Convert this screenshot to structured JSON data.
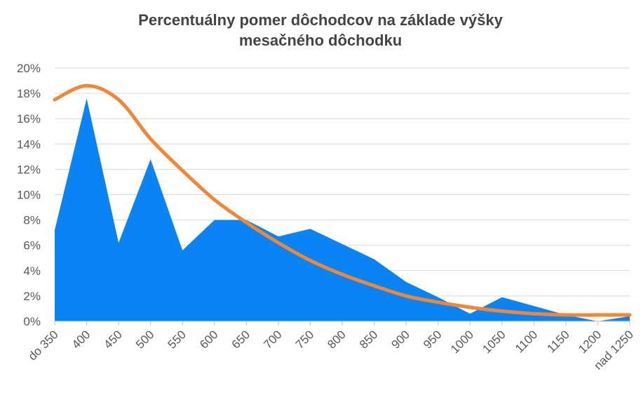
{
  "chart_data": {
    "type": "area",
    "title_lines": [
      "Percentuálny  pomer dôchodcov na základe výšky",
      "mesačného dôchodku"
    ],
    "categories": [
      "do 350",
      "400",
      "450",
      "500",
      "550",
      "600",
      "650",
      "700",
      "750",
      "800",
      "850",
      "900",
      "950",
      "1000",
      "1050",
      "1100",
      "1150",
      "1200",
      "nad 1250"
    ],
    "ylim": [
      0,
      20
    ],
    "yticks": [
      0,
      2,
      4,
      6,
      8,
      10,
      12,
      14,
      16,
      18,
      20
    ],
    "ytick_suffix": "%",
    "grid": true,
    "series": [
      {
        "kind": "area",
        "color": "#0a84f5",
        "values": [
          7.2,
          17.6,
          6.2,
          12.8,
          5.6,
          8.0,
          8.0,
          6.7,
          7.3,
          6.1,
          4.9,
          3.1,
          1.9,
          0.6,
          1.9,
          1.2,
          0.5,
          0.0,
          0.4
        ]
      },
      {
        "kind": "line",
        "color": "#f28632",
        "values": [
          17.5,
          18.6,
          17.5,
          14.4,
          11.9,
          9.6,
          7.8,
          6.2,
          4.8,
          3.7,
          2.8,
          2.0,
          1.5,
          1.1,
          0.8,
          0.6,
          0.5,
          0.5,
          0.5
        ]
      }
    ]
  }
}
